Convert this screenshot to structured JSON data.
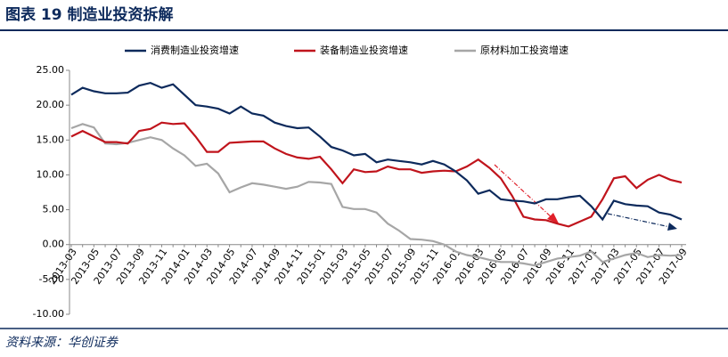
{
  "title": "图表 19 制造业投资拆解",
  "source": "资料来源：华创证券",
  "chart_data": {
    "type": "line",
    "categories": [
      "2013-03",
      null,
      "2013-05",
      null,
      "2013-07",
      null,
      "2013-09",
      null,
      "2013-11",
      null,
      "2014-01",
      null,
      "2014-03",
      null,
      "2014-05",
      null,
      "2014-07",
      null,
      "2014-09",
      null,
      "2014-11",
      null,
      "2015-01",
      null,
      "2015-03",
      null,
      "2015-05",
      null,
      "2015-07",
      null,
      "2015-09",
      null,
      "2015-11",
      null,
      "2016-01",
      null,
      "2016-03",
      null,
      "2016-05",
      null,
      "2016-07",
      null,
      "2016-09",
      null,
      "2016-11",
      null,
      "2017-01",
      null,
      "2017-03",
      null,
      "2017-05",
      null,
      "2017-07",
      null,
      "2017-09"
    ],
    "series": [
      {
        "name": "消费制造业投资增速",
        "color": "#0d2a5c",
        "values": [
          21.5,
          22.5,
          22.0,
          21.7,
          21.7,
          21.8,
          22.8,
          23.2,
          22.5,
          23.0,
          21.5,
          20.0,
          19.8,
          19.5,
          18.8,
          19.8,
          18.8,
          18.5,
          17.5,
          17.0,
          16.7,
          16.8,
          15.5,
          14.0,
          13.5,
          12.8,
          13.0,
          11.8,
          12.2,
          12.0,
          11.8,
          11.5,
          12.0,
          11.5,
          10.5,
          9.2,
          7.3,
          7.8,
          6.5,
          6.3,
          6.2,
          5.9,
          6.5,
          6.5,
          6.8,
          7.0,
          5.5,
          3.6,
          6.3,
          5.8,
          5.6,
          5.5,
          4.6,
          4.3,
          3.6
        ]
      },
      {
        "name": "装备制造业投资增速",
        "color": "#c0141c",
        "values": [
          15.5,
          16.3,
          15.5,
          14.7,
          14.7,
          14.5,
          16.3,
          16.6,
          17.5,
          17.3,
          17.4,
          15.5,
          13.3,
          13.3,
          14.6,
          14.7,
          14.8,
          14.8,
          13.8,
          13.0,
          12.5,
          12.3,
          12.6,
          10.8,
          8.8,
          10.8,
          10.4,
          10.5,
          11.2,
          10.8,
          10.8,
          10.3,
          10.5,
          10.6,
          10.5,
          11.2,
          12.2,
          11.0,
          9.5,
          7.0,
          4.0,
          3.6,
          3.5,
          3.0,
          2.6,
          3.3,
          4.0,
          6.5,
          9.5,
          9.8,
          8.1,
          9.3,
          10.0,
          9.3,
          8.9
        ]
      },
      {
        "name": "原材料加工投资增速",
        "color": "#a6a6a6",
        "values": [
          16.7,
          17.3,
          16.8,
          14.5,
          14.4,
          14.6,
          15.0,
          15.4,
          15.0,
          13.8,
          12.8,
          11.3,
          11.6,
          10.2,
          7.5,
          8.2,
          8.8,
          8.6,
          8.3,
          8.0,
          8.3,
          9.0,
          8.9,
          8.7,
          5.4,
          5.1,
          5.1,
          4.6,
          3.0,
          2.0,
          0.8,
          0.7,
          0.5,
          0,
          -1.0,
          -1.5,
          -1.8,
          -2.2,
          -2.5,
          -2.5,
          -2.7,
          -3.0,
          -2.5,
          -2.0,
          -1.8,
          -1.6,
          -1.0,
          -2.5,
          -2.0,
          -1.5,
          -1.2,
          -1.8,
          -1.5,
          -1.6,
          -1.5
        ]
      }
    ],
    "ylim": [
      -10,
      25
    ],
    "yticks": [
      {
        "value": 25,
        "label": "25.00"
      },
      {
        "value": 20,
        "label": "20.00"
      },
      {
        "value": 15,
        "label": "15.00"
      },
      {
        "value": 10,
        "label": "10.00"
      },
      {
        "value": 5,
        "label": "5.00"
      },
      {
        "value": 0,
        "label": "0.00"
      },
      {
        "value": -5,
        "label": "-5.00"
      },
      {
        "value": -10,
        "label": "-10.00"
      }
    ],
    "grid": false,
    "legend": "top"
  }
}
